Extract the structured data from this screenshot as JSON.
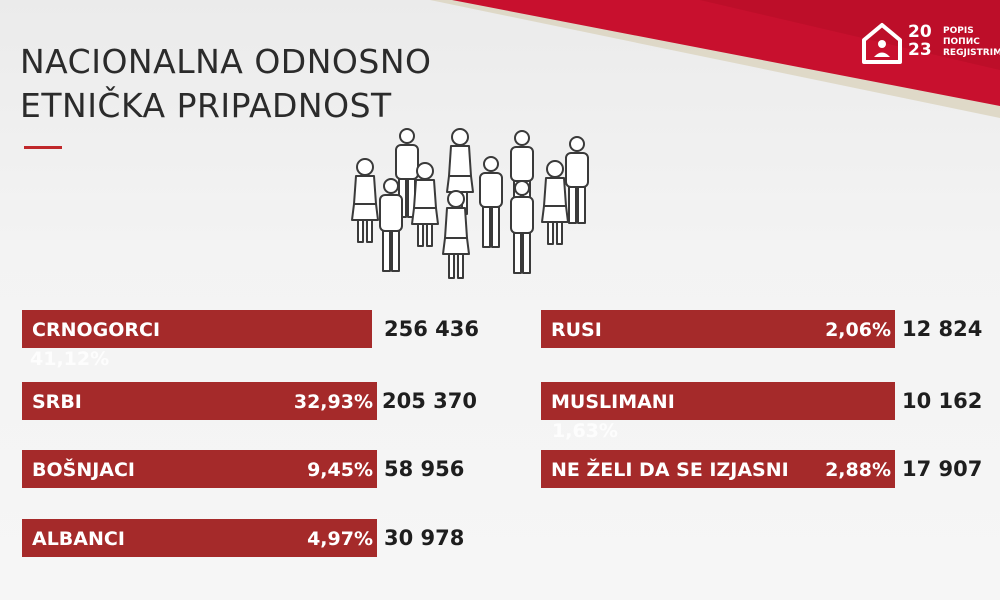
{
  "title_lines": [
    "NACIONALNA ODNOSNO",
    "ETNIČKA PRIPADNOST"
  ],
  "logo": {
    "year_top": "20",
    "year_bottom": "23",
    "words": [
      "POPIS",
      "ПОПИС",
      "REGJISTRIMI"
    ]
  },
  "colors": {
    "accent": "#a52a2a",
    "ribbon": "#c8102e",
    "text": "#1e1e1e"
  },
  "icons": [
    "people-group-icon",
    "house-logo-icon"
  ],
  "groups": [
    {
      "label": "CRNOGORCI",
      "percent": "41,12%",
      "count": "256 436"
    },
    {
      "label": "SRBI",
      "percent": "32,93%",
      "count": "205 370"
    },
    {
      "label": "BOŠNJACI",
      "percent": "9,45%",
      "count": "58 956"
    },
    {
      "label": "ALBANCI",
      "percent": "4,97%",
      "count": "30 978"
    },
    {
      "label": "RUSI",
      "percent": "2,06%",
      "count": "12 824"
    },
    {
      "label": "MUSLIMANI",
      "percent": "1,63%",
      "count": "10 162"
    },
    {
      "label": "NE ŽELI DA SE IZJASNI",
      "percent": "2,88%",
      "count": "17 907"
    }
  ]
}
